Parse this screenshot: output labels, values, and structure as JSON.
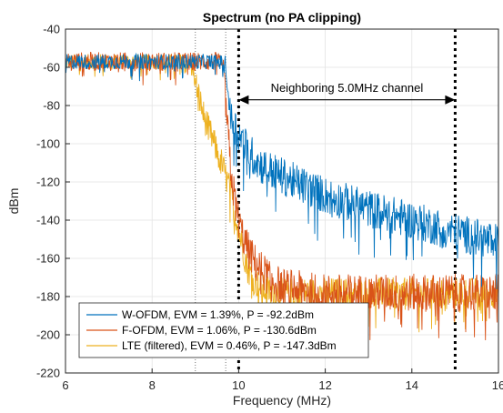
{
  "chart_data": {
    "type": "line",
    "title": "Spectrum (no PA clipping)",
    "xlabel": "Frequency (MHz)",
    "ylabel": "dBm",
    "xlim": [
      6,
      16
    ],
    "ylim": [
      -220,
      -40
    ],
    "xticks": [
      6,
      8,
      10,
      12,
      14,
      16
    ],
    "yticks": [
      -220,
      -200,
      -180,
      -160,
      -140,
      -120,
      -100,
      -80,
      -60,
      -40
    ],
    "grid": true,
    "legend_position": "bottom-left",
    "series": [
      {
        "name": "W-OFDM, EVM = 1.39%, P = -92.2dBm",
        "color": "#0072BD",
        "x": [
          6,
          7,
          8,
          9,
          9.5,
          9.7,
          9.8,
          10,
          10.2,
          10.5,
          11,
          11.5,
          12,
          13,
          14,
          15,
          16
        ],
        "y": [
          -57,
          -57,
          -57,
          -57,
          -57,
          -58,
          -85,
          -95,
          -103,
          -111,
          -117,
          -122,
          -127,
          -134,
          -140,
          -146,
          -152
        ]
      },
      {
        "name": "F-OFDM, EVM = 1.06%, P = -130.6dBm",
        "color": "#D95319",
        "x": [
          6,
          7,
          8,
          9,
          9.5,
          9.65,
          9.75,
          9.85,
          9.95,
          10.05,
          10.2,
          10.4,
          10.7,
          11,
          12,
          13,
          14,
          15,
          16
        ],
        "y": [
          -57,
          -57,
          -57,
          -57,
          -57,
          -60,
          -95,
          -120,
          -135,
          -145,
          -155,
          -163,
          -170,
          -175,
          -178,
          -178,
          -178,
          -178,
          -178
        ]
      },
      {
        "name": "LTE (filtered), EVM = 0.46%, P = -147.3dBm",
        "color": "#EDB120",
        "x": [
          6,
          7,
          8,
          8.7,
          8.9,
          9.0,
          9.2,
          9.4,
          9.6,
          9.8,
          10.0,
          10.2,
          10.5,
          11,
          12,
          13,
          14,
          15,
          16
        ],
        "y": [
          -57,
          -57,
          -57,
          -57,
          -57,
          -68,
          -86,
          -98,
          -110,
          -124,
          -145,
          -165,
          -176,
          -178,
          -178,
          -178,
          -178,
          -178,
          -178
        ]
      }
    ],
    "vlines": [
      {
        "x": 9.0,
        "style": "dotted-thin"
      },
      {
        "x": 9.7,
        "style": "dotted-thin"
      },
      {
        "x": 10.0,
        "style": "dotted-thick"
      },
      {
        "x": 15.0,
        "style": "dotted-thick"
      }
    ],
    "annotations": [
      {
        "text": "Neighboring 5.0MHz channel",
        "x1": 10,
        "x2": 15,
        "y": -77,
        "text_y": -71,
        "arrow": "double"
      }
    ]
  }
}
